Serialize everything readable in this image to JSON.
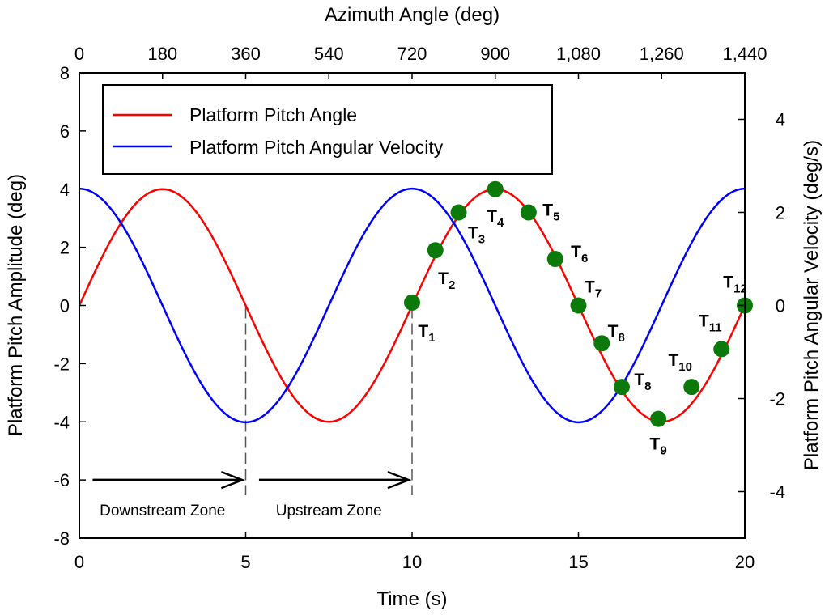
{
  "chart_data": {
    "type": "line",
    "xlabel": "Time (s)",
    "x2label": "Azimuth Angle (deg)",
    "ylabel": "Platform Pitch Amplitude (deg)",
    "y2label": "Platform Pitch Angular Velocity (deg/s)",
    "xlim": [
      0,
      20
    ],
    "ylim": [
      -8,
      8
    ],
    "y2lim": [
      -5,
      5
    ],
    "x_ticks": [
      "0",
      "5",
      "10",
      "15",
      "20"
    ],
    "x_tick_values": [
      0,
      5,
      10,
      15,
      20
    ],
    "x2_ticks": [
      "0",
      "180",
      "360",
      "540",
      "720",
      "900",
      "1,080",
      "1,260",
      "1,440"
    ],
    "y_ticks": [
      "8",
      "6",
      "4",
      "2",
      "0",
      "-2",
      "-4",
      "-6",
      "-8"
    ],
    "y_tick_values": [
      8,
      6,
      4,
      2,
      0,
      -2,
      -4,
      -6,
      -8
    ],
    "y2_ticks": [
      "4",
      "2",
      "0",
      "-2",
      "-4"
    ],
    "y2_tick_values": [
      4,
      2,
      0,
      -2,
      -4
    ],
    "series": [
      {
        "name": "Platform Pitch Angle",
        "color": "#ff0000",
        "axis": "left",
        "function": "4*sin(2*pi*t/10)",
        "x": [
          0,
          1.25,
          2.5,
          3.75,
          5,
          6.25,
          7.5,
          8.75,
          10,
          11.25,
          12.5,
          13.75,
          15,
          16.25,
          17.5,
          18.75,
          20
        ],
        "values": [
          0,
          2.83,
          4,
          2.83,
          0,
          -2.83,
          -4,
          -2.83,
          0,
          2.83,
          4,
          2.83,
          0,
          -2.83,
          -4,
          -2.83,
          0
        ]
      },
      {
        "name": "Platform Pitch Angular Velocity",
        "color": "#0000ff",
        "axis": "right",
        "function": "2.51*cos(2*pi*t/10)",
        "x": [
          0,
          1.25,
          2.5,
          3.75,
          5,
          6.25,
          7.5,
          8.75,
          10,
          11.25,
          12.5,
          13.75,
          15,
          16.25,
          17.5,
          18.75,
          20
        ],
        "values": [
          2.51,
          1.78,
          0,
          -1.78,
          -2.51,
          -1.78,
          0,
          1.78,
          2.51,
          1.78,
          0,
          -1.78,
          -2.51,
          -1.78,
          0,
          1.78,
          2.51
        ]
      }
    ],
    "markers": {
      "color": "#0b7a0b",
      "points": [
        {
          "x": 10.0,
          "y": 0.1,
          "label": "T",
          "sub": "1",
          "dx": 18,
          "dy": 42
        },
        {
          "x": 10.7,
          "y": 1.9,
          "label": "T",
          "sub": "2",
          "dx": 14,
          "dy": 42
        },
        {
          "x": 11.4,
          "y": 3.2,
          "label": "T",
          "sub": "3",
          "dx": 22,
          "dy": 32
        },
        {
          "x": 12.5,
          "y": 4.0,
          "label": "T",
          "sub": "4",
          "dx": 0,
          "dy": 40
        },
        {
          "x": 13.5,
          "y": 3.2,
          "label": "T",
          "sub": "5",
          "dx": 28,
          "dy": 4
        },
        {
          "x": 14.3,
          "y": 1.6,
          "label": "T",
          "sub": "6",
          "dx": 30,
          "dy": -2
        },
        {
          "x": 15.0,
          "y": 0.0,
          "label": "T",
          "sub": "7",
          "dx": 18,
          "dy": -16
        },
        {
          "x": 15.7,
          "y": -1.3,
          "label": "T",
          "sub": "8",
          "dx": 18,
          "dy": -8
        },
        {
          "x": 16.3,
          "y": -2.8,
          "label": "T",
          "sub": "8",
          "dx": 26,
          "dy": -2
        },
        {
          "x": 17.4,
          "y": -3.9,
          "label": "T",
          "sub": "9",
          "dx": 0,
          "dy": 38
        },
        {
          "x": 18.4,
          "y": -2.8,
          "label": "T",
          "sub": "10",
          "dx": -14,
          "dy": -26
        },
        {
          "x": 19.3,
          "y": -1.5,
          "label": "T",
          "sub": "11",
          "dx": -14,
          "dy": -28
        },
        {
          "x": 20.0,
          "y": 0.0,
          "label": "T",
          "sub": "12",
          "dx": -12,
          "dy": -22
        }
      ]
    },
    "vertical_lines": [
      {
        "x": 5,
        "style": "dashed"
      },
      {
        "x": 10,
        "style": "dashed"
      }
    ],
    "arrows": [
      {
        "x_from": 0.4,
        "x_to": 4.9,
        "y": -6
      },
      {
        "x_from": 5.4,
        "x_to": 9.9,
        "y": -6
      }
    ],
    "zone_labels": [
      {
        "text": "Downstream Zone",
        "x": 2.5
      },
      {
        "text": "Upstream Zone",
        "x": 7.5
      }
    ],
    "legend": {
      "position": "top-left",
      "entries": [
        "Platform Pitch Angle",
        "Platform Pitch Angular Velocity"
      ]
    },
    "grid": false
  }
}
